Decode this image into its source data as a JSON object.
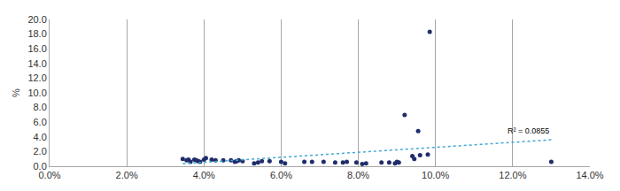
{
  "chart_data": {
    "type": "scatter",
    "y_label": "%",
    "x": [
      3.45,
      3.55,
      3.6,
      3.65,
      3.75,
      3.8,
      3.85,
      3.9,
      4.0,
      4.05,
      4.2,
      4.3,
      4.5,
      4.7,
      4.8,
      4.85,
      4.9,
      5.0,
      5.3,
      5.4,
      5.5,
      5.7,
      6.0,
      6.1,
      6.6,
      6.8,
      7.1,
      7.4,
      7.6,
      7.7,
      7.95,
      8.1,
      8.2,
      8.6,
      8.8,
      8.95,
      9.0,
      9.05,
      9.2,
      9.4,
      9.45,
      9.55,
      9.6,
      9.8,
      9.85,
      13.0
    ],
    "values": [
      1.0,
      0.8,
      0.9,
      0.6,
      0.9,
      0.8,
      0.7,
      0.6,
      0.9,
      1.1,
      0.9,
      0.8,
      0.8,
      0.8,
      0.6,
      0.7,
      0.8,
      0.7,
      0.4,
      0.5,
      0.7,
      0.7,
      0.6,
      0.4,
      0.6,
      0.6,
      0.6,
      0.5,
      0.5,
      0.6,
      0.5,
      0.3,
      0.4,
      0.5,
      0.5,
      0.4,
      0.6,
      0.5,
      7.0,
      1.4,
      1.0,
      4.8,
      1.5,
      1.6,
      18.3,
      0.6
    ],
    "color": "#1f2d6b",
    "marker": "circle",
    "trendline": {
      "x": [
        3.45,
        13.0
      ],
      "values": [
        0.35,
        3.6
      ],
      "color": "#3fa9d6",
      "line_style": "dot"
    },
    "annotations": [
      "R² = 0.0855"
    ],
    "xlim": [
      0,
      14
    ],
    "xticks": [
      {
        "value": 0,
        "label": "0.0%"
      },
      {
        "value": 2,
        "label": "2.0%"
      },
      {
        "value": 4,
        "label": "4.0%"
      },
      {
        "value": 6,
        "label": "6.0%"
      },
      {
        "value": 8,
        "label": "8.0%"
      },
      {
        "value": 10,
        "label": "10.0%"
      },
      {
        "value": 12,
        "label": "12.0%"
      },
      {
        "value": 14,
        "label": "14.0%"
      }
    ],
    "ylim": [
      0,
      20
    ],
    "yticks": [
      {
        "value": 0,
        "label": "0.0"
      },
      {
        "value": 2,
        "label": "2.0"
      },
      {
        "value": 4,
        "label": "4.0"
      },
      {
        "value": 6,
        "label": "6.0"
      },
      {
        "value": 8,
        "label": "8.0"
      },
      {
        "value": 10,
        "label": "10.0"
      },
      {
        "value": 12,
        "label": "12.0"
      },
      {
        "value": 14,
        "label": "14.0"
      },
      {
        "value": 16,
        "label": "16.0"
      },
      {
        "value": 18,
        "label": "18.0"
      },
      {
        "value": 20,
        "label": "20.0"
      }
    ],
    "grid": "x",
    "legend": "none"
  }
}
